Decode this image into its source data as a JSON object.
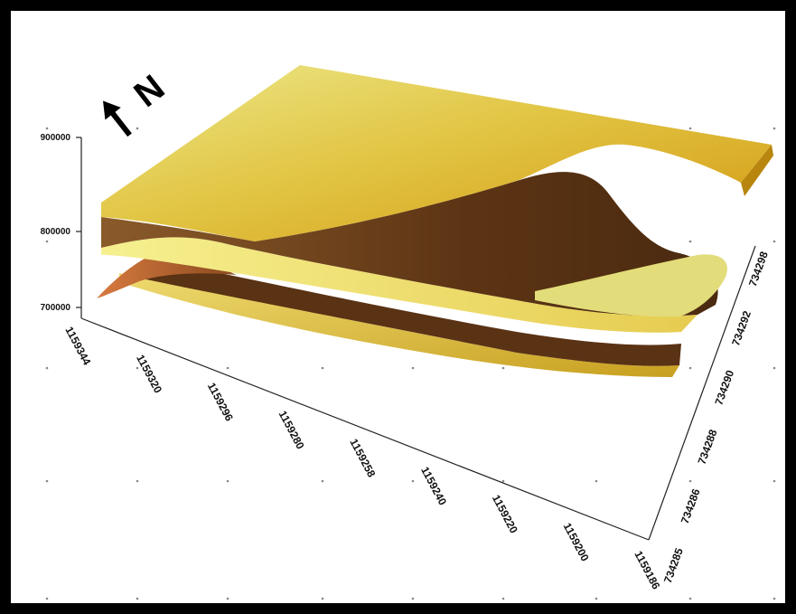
{
  "figure": {
    "north_label": "N",
    "z_axis": {
      "ticks": [
        "900000",
        "800000",
        "700000"
      ]
    },
    "x_axis": {
      "ticks": [
        "1159344",
        "1159320",
        "1159296",
        "1159280",
        "1159258",
        "1159240",
        "1159220",
        "1159200",
        "1159186"
      ]
    },
    "y_axis": {
      "ticks": [
        "734285",
        "734286",
        "734288",
        "734290",
        "734292",
        "734298"
      ]
    },
    "colors": {
      "frame": "#000000",
      "background": "#ffffff",
      "surface_light": "#f0dc50",
      "surface_mid": "#d8b02a",
      "surface_dark": "#5a3214",
      "surface_orange": "#c86428",
      "axis": "#222222",
      "grid_dot": "#888888"
    },
    "icons": {
      "north_arrow": "north-arrow-icon"
    }
  }
}
